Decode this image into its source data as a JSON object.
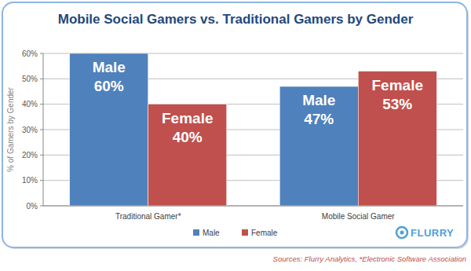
{
  "chart_data": {
    "type": "bar",
    "title": "Mobile Social Gamers vs. Traditional Gamers by Gender",
    "ylabel": "% of Gamers by Gender",
    "categories": [
      "Traditional Gamer*",
      "Mobile Social Gamer"
    ],
    "series": [
      {
        "name": "Male",
        "color": "#4f81bd",
        "values": [
          60,
          47
        ],
        "value_labels": [
          "60%",
          "47%"
        ]
      },
      {
        "name": "Female",
        "color": "#c0504d",
        "values": [
          40,
          53
        ],
        "value_labels": [
          "40%",
          "53%"
        ]
      }
    ],
    "ylim": [
      0,
      60
    ],
    "yticks": [
      {
        "value": 0,
        "label": "0%"
      },
      {
        "value": 10,
        "label": "10%"
      },
      {
        "value": 20,
        "label": "20%"
      },
      {
        "value": 30,
        "label": "30%"
      },
      {
        "value": 40,
        "label": "40%"
      },
      {
        "value": 50,
        "label": "50%"
      },
      {
        "value": 60,
        "label": "60%"
      }
    ],
    "grid": true,
    "legend": "bottom",
    "data_labels": true,
    "annotations": [
      "FLURRY",
      "Sources: Flurry Analytics, *Electronic Software Association"
    ]
  }
}
